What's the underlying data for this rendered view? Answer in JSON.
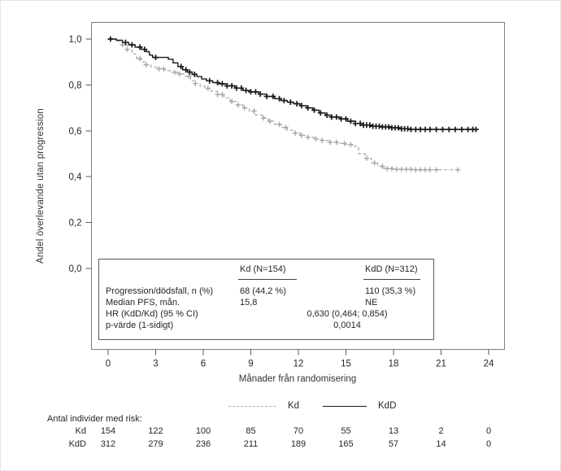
{
  "chart_data": {
    "type": "line",
    "subtype": "kaplan-meier-step",
    "title": "",
    "x_label": "Månader från randomisering",
    "y_label": "Andel överlevande utan progression",
    "xlim": [
      0,
      24
    ],
    "ylim": [
      0.0,
      1.0
    ],
    "x_ticks": [
      0,
      3,
      6,
      9,
      12,
      15,
      18,
      21,
      24
    ],
    "x_tick_labels": [
      "0",
      "3",
      "6",
      "9",
      "12",
      "15",
      "18",
      "21",
      "24"
    ],
    "y_ticks": [
      1.0,
      0.8,
      0.6,
      0.4,
      0.2,
      0.0
    ],
    "y_tick_labels": [
      "1,0",
      "0,8",
      "0,6",
      "0,4",
      "0,2",
      "0,0"
    ],
    "grid": false,
    "legend_position": "below-plot",
    "series": [
      {
        "name": "Kd",
        "color": "#a6a6a6",
        "line_style": "dashed",
        "steps": [
          [
            0,
            1.0
          ],
          [
            0.6,
            0.99
          ],
          [
            0.9,
            0.975
          ],
          [
            1.2,
            0.955
          ],
          [
            1.5,
            0.935
          ],
          [
            1.8,
            0.915
          ],
          [
            2.1,
            0.9
          ],
          [
            2.4,
            0.888
          ],
          [
            2.7,
            0.877
          ],
          [
            3.1,
            0.87
          ],
          [
            3.6,
            0.862
          ],
          [
            4.0,
            0.855
          ],
          [
            4.4,
            0.848
          ],
          [
            4.8,
            0.838
          ],
          [
            5.2,
            0.818
          ],
          [
            5.5,
            0.806
          ],
          [
            5.8,
            0.795
          ],
          [
            6.1,
            0.785
          ],
          [
            6.5,
            0.772
          ],
          [
            6.9,
            0.758
          ],
          [
            7.3,
            0.744
          ],
          [
            7.7,
            0.728
          ],
          [
            8.1,
            0.713
          ],
          [
            8.5,
            0.7
          ],
          [
            8.9,
            0.686
          ],
          [
            9.3,
            0.67
          ],
          [
            9.7,
            0.656
          ],
          [
            10.1,
            0.642
          ],
          [
            10.5,
            0.628
          ],
          [
            10.9,
            0.615
          ],
          [
            11.3,
            0.602
          ],
          [
            11.7,
            0.59
          ],
          [
            12.1,
            0.58
          ],
          [
            12.5,
            0.572
          ],
          [
            13.0,
            0.565
          ],
          [
            13.5,
            0.558
          ],
          [
            14.0,
            0.55
          ],
          [
            14.5,
            0.545
          ],
          [
            15.0,
            0.54
          ],
          [
            15.4,
            0.533
          ],
          [
            15.8,
            0.5
          ],
          [
            16.2,
            0.48
          ],
          [
            16.6,
            0.46
          ],
          [
            17.0,
            0.445
          ],
          [
            17.4,
            0.435
          ],
          [
            18.0,
            0.432
          ],
          [
            19.2,
            0.43
          ],
          [
            22.1,
            0.43
          ]
        ],
        "censor_months": [
          0.9,
          1.2,
          2.0,
          2.4,
          3.2,
          3.5,
          4.2,
          4.5,
          5.1,
          5.5,
          6.3,
          6.9,
          7.2,
          7.8,
          8.2,
          8.6,
          9.2,
          9.8,
          10.2,
          10.8,
          11.2,
          11.8,
          12.2,
          12.6,
          13.1,
          13.5,
          14.0,
          14.4,
          14.9,
          15.3,
          16.3,
          16.8,
          17.3,
          17.6,
          17.9,
          18.2,
          18.5,
          18.8,
          19.1,
          19.4,
          19.7,
          20.0,
          20.3,
          20.7,
          22.05
        ]
      },
      {
        "name": "KdD",
        "color": "#1a1a1a",
        "line_style": "solid",
        "steps": [
          [
            0,
            1.0
          ],
          [
            0.5,
            0.995
          ],
          [
            0.9,
            0.985
          ],
          [
            1.3,
            0.975
          ],
          [
            1.7,
            0.965
          ],
          [
            2.1,
            0.955
          ],
          [
            2.4,
            0.945
          ],
          [
            2.6,
            0.93
          ],
          [
            2.8,
            0.92
          ],
          [
            3.8,
            0.912
          ],
          [
            4.1,
            0.896
          ],
          [
            4.4,
            0.88
          ],
          [
            4.7,
            0.866
          ],
          [
            5.0,
            0.856
          ],
          [
            5.3,
            0.846
          ],
          [
            5.6,
            0.836
          ],
          [
            5.9,
            0.826
          ],
          [
            6.2,
            0.818
          ],
          [
            6.6,
            0.81
          ],
          [
            7.0,
            0.805
          ],
          [
            7.5,
            0.796
          ],
          [
            8.0,
            0.786
          ],
          [
            8.5,
            0.776
          ],
          [
            9.0,
            0.77
          ],
          [
            9.5,
            0.76
          ],
          [
            10.0,
            0.75
          ],
          [
            10.5,
            0.74
          ],
          [
            10.9,
            0.732
          ],
          [
            11.3,
            0.725
          ],
          [
            11.7,
            0.718
          ],
          [
            12.1,
            0.71
          ],
          [
            12.5,
            0.7
          ],
          [
            12.9,
            0.69
          ],
          [
            13.3,
            0.678
          ],
          [
            13.7,
            0.668
          ],
          [
            14.1,
            0.66
          ],
          [
            14.6,
            0.652
          ],
          [
            15.1,
            0.642
          ],
          [
            15.6,
            0.632
          ],
          [
            16.1,
            0.625
          ],
          [
            16.6,
            0.62
          ],
          [
            17.2,
            0.617
          ],
          [
            17.8,
            0.613
          ],
          [
            18.4,
            0.609
          ],
          [
            19.0,
            0.606
          ],
          [
            23.2,
            0.606
          ]
        ],
        "censor_months": [
          0.15,
          1.1,
          1.5,
          2.0,
          2.3,
          3.0,
          4.6,
          4.9,
          5.15,
          5.45,
          6.4,
          6.9,
          7.2,
          7.5,
          7.8,
          8.1,
          8.4,
          8.7,
          9.0,
          9.3,
          9.6,
          10.0,
          10.4,
          10.8,
          11.1,
          11.5,
          11.9,
          12.2,
          12.6,
          13.0,
          13.4,
          13.8,
          14.1,
          14.4,
          14.7,
          15.0,
          15.3,
          15.6,
          15.9,
          16.1,
          16.3,
          16.5,
          16.7,
          16.9,
          17.1,
          17.3,
          17.5,
          17.7,
          17.9,
          18.1,
          18.3,
          18.5,
          18.7,
          18.9,
          19.1,
          19.4,
          19.7,
          20.0,
          20.3,
          20.7,
          21.1,
          21.5,
          21.9,
          22.3,
          22.7,
          23.0,
          23.2
        ]
      }
    ]
  },
  "stats_box": {
    "col_headers": [
      "Kd (N=154)",
      "KdD (N=312)"
    ],
    "rows": [
      {
        "label": "Progression/dödsfall, n (%)",
        "kd": "68 (44,2 %)",
        "kdd": "110 (35,3 %)"
      },
      {
        "label": "Median PFS, mån.",
        "kd": "15,8",
        "kdd": "NE"
      },
      {
        "label": "HR (KdD/Kd) (95 % CI)",
        "center": "0,630 (0,464; 0,854)"
      },
      {
        "label": "p-värde (1-sidigt)",
        "center": "0,0014"
      }
    ]
  },
  "legend": {
    "items": [
      {
        "label": "Kd",
        "style": "dashed",
        "color": "#a6a6a6"
      },
      {
        "label": "KdD",
        "style": "solid",
        "color": "#1a1a1a"
      }
    ]
  },
  "risk_table": {
    "title": "Antal individer med risk:",
    "rows": [
      {
        "label": "Kd",
        "counts": [
          "154",
          "122",
          "100",
          "85",
          "70",
          "55",
          "13",
          "2",
          "0"
        ]
      },
      {
        "label": "KdD",
        "counts": [
          "312",
          "279",
          "236",
          "211",
          "189",
          "165",
          "57",
          "14",
          "0"
        ]
      }
    ]
  }
}
